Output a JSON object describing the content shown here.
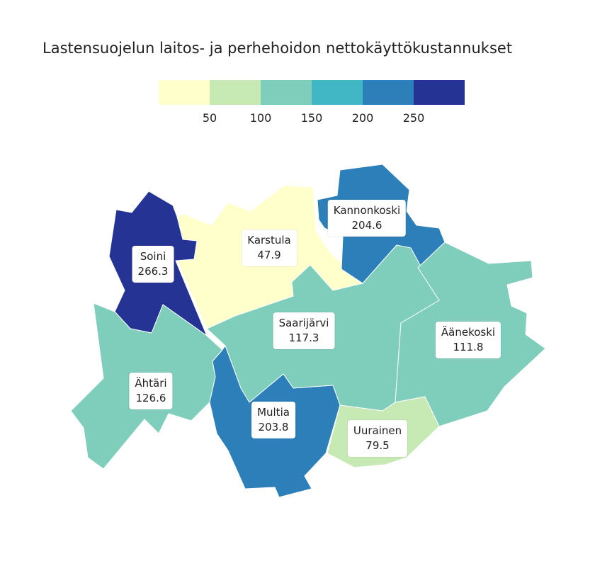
{
  "title": "Lastensuojelun laitos- ja perhehoidon nettokäyttökustannukset",
  "legend": {
    "breaks": [
      50,
      100,
      150,
      200,
      250
    ],
    "tick_labels": [
      "50",
      "100",
      "150",
      "200",
      "250"
    ],
    "colors": [
      "#ffffcc",
      "#c7e9b4",
      "#7fcdbb",
      "#41b6c4",
      "#2c7fb8",
      "#253494"
    ]
  },
  "regions": [
    {
      "key": "karstula",
      "name": "Karstula",
      "value": 47.9,
      "value_label": "47.9",
      "color": "#ffffcc"
    },
    {
      "key": "kannonkoski",
      "name": "Kannonkoski",
      "value": 204.6,
      "value_label": "204.6",
      "color": "#2c7fb8"
    },
    {
      "key": "soini",
      "name": "Soini",
      "value": 266.3,
      "value_label": "266.3",
      "color": "#253494"
    },
    {
      "key": "saarijarvi",
      "name": "Saarijärvi",
      "value": 117.3,
      "value_label": "117.3",
      "color": "#7fcdbb"
    },
    {
      "key": "aanekoski",
      "name": "Äänekoski",
      "value": 111.8,
      "value_label": "111.8",
      "color": "#7fcdbb"
    },
    {
      "key": "ahtari",
      "name": "Ähtäri",
      "value": 126.6,
      "value_label": "126.6",
      "color": "#7fcdbb"
    },
    {
      "key": "multia",
      "name": "Multia",
      "value": 203.8,
      "value_label": "203.8",
      "color": "#2c7fb8"
    },
    {
      "key": "uurainen",
      "name": "Uurainen",
      "value": 79.5,
      "value_label": "79.5",
      "color": "#c7e9b4"
    }
  ]
}
